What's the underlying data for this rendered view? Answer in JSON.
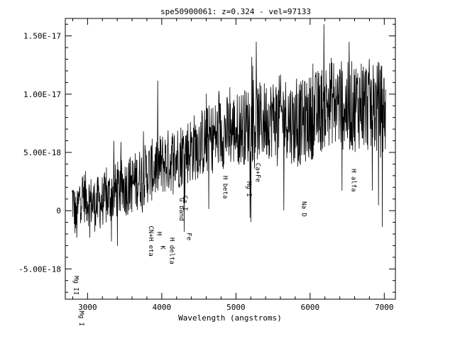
{
  "chart_data": {
    "type": "line",
    "title": "spe50900061: z=0.324 - vel=97133",
    "xlabel": "Wavelength (angstroms)",
    "ylabel": "",
    "xlim": [
      2700,
      7150
    ],
    "ylim": [
      -7.6e-18,
      1.65e-17
    ],
    "xticks": [
      3000,
      4000,
      5000,
      6000,
      7000
    ],
    "xtick_labels": [
      "3000",
      "4000",
      "5000",
      "6000",
      "7000"
    ],
    "yticks": [
      -5e-18,
      0,
      5e-18,
      1e-17,
      1.5e-17
    ],
    "ytick_labels": [
      "-5.00E-18",
      "0",
      "5.00E-18",
      "1.00E-17",
      "1.50E-17"
    ],
    "series": [
      {
        "name": "",
        "x": [
          2800,
          2850,
          2900,
          3000,
          3100,
          3200,
          3300,
          3400,
          3500,
          3600,
          3700,
          3800,
          3900,
          4000,
          4100,
          4200,
          4300,
          4400,
          4500,
          4600,
          4700,
          4800,
          4900,
          5000,
          5100,
          5200,
          5300,
          5400,
          5500,
          5600,
          5700,
          5800,
          5900,
          6000,
          6100,
          6200,
          6300,
          6400,
          6500,
          6600,
          6700,
          6800,
          6900,
          7000
        ],
        "y": [
          1e-18,
          -1e-18,
          1.5e-18,
          1e-18,
          5e-19,
          8e-19,
          1.2e-18,
          1.8e-18,
          2e-18,
          2.3e-18,
          2.8e-18,
          3.2e-18,
          3.6e-18,
          4e-18,
          4.3e-18,
          4.6e-18,
          5e-18,
          5.3e-18,
          5.7e-18,
          6e-18,
          6.3e-18,
          6.7e-18,
          6.8e-18,
          7e-18,
          7.2e-18,
          7.4e-18,
          7.6e-18,
          7.8e-18,
          8e-18,
          8.2e-18,
          8e-18,
          7.2e-18,
          7.6e-18,
          8e-18,
          8.4e-18,
          9e-18,
          9.5e-18,
          9.2e-18,
          8.8e-18,
          9e-18,
          9.4e-18,
          9e-18,
          8.8e-18,
          8.5e-18
        ]
      }
    ]
  },
  "annotations": [
    {
      "text": "Mg II"
    },
    {
      "text": "Mg I"
    },
    {
      "text": "CN+H eta"
    },
    {
      "text": "H"
    },
    {
      "text": "K"
    },
    {
      "text": "H delta"
    },
    {
      "text": "G band"
    },
    {
      "text": "Ca I"
    },
    {
      "text": "Fe"
    },
    {
      "text": "H beta"
    },
    {
      "text": "Mg I"
    },
    {
      "text": "Ca+Fe"
    },
    {
      "text": "Na D"
    },
    {
      "text": "H alfa"
    }
  ]
}
